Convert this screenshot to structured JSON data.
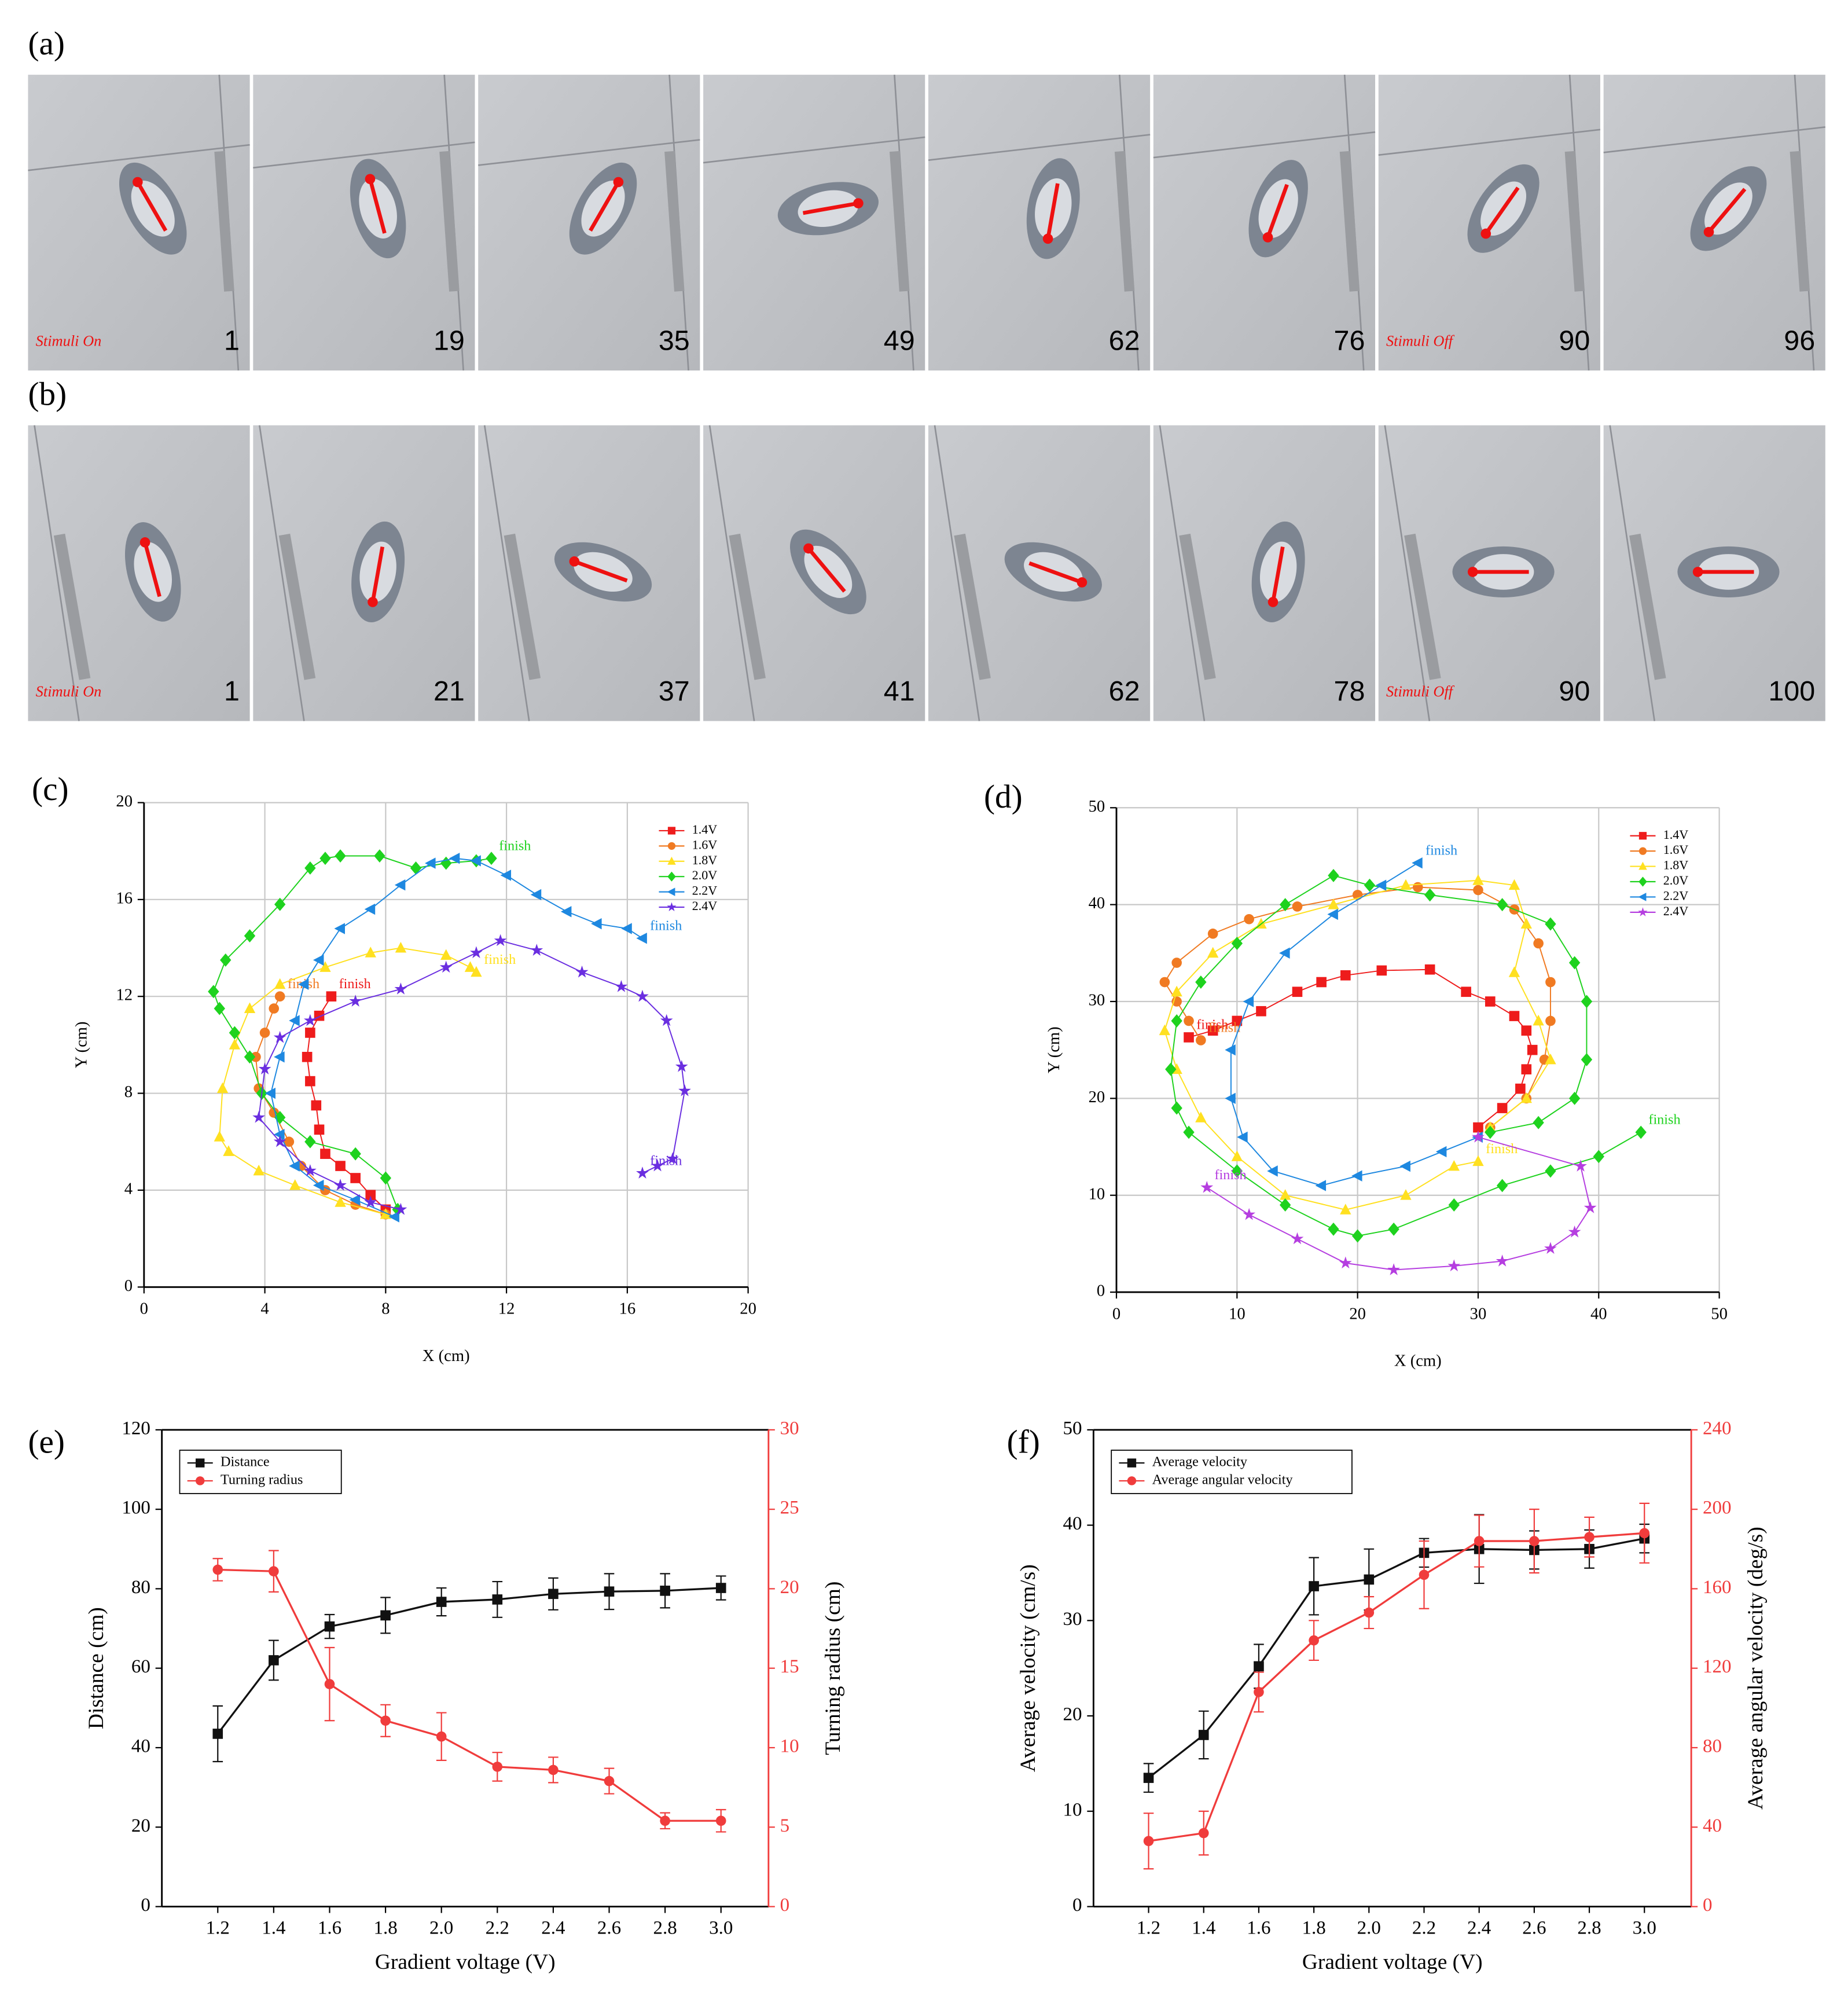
{
  "photo_strips": [
    {
      "panel_label": "(a)",
      "frames": [
        {
          "number": 1,
          "note": "Stimuli On"
        },
        {
          "number": 19
        },
        {
          "number": 35
        },
        {
          "number": 49
        },
        {
          "number": 62
        },
        {
          "number": 76
        },
        {
          "number": 90,
          "note": "Stimuli Off"
        },
        {
          "number": 96
        }
      ]
    },
    {
      "panel_label": "(b)",
      "frames": [
        {
          "number": 1,
          "note": "Stimuli On"
        },
        {
          "number": 21
        },
        {
          "number": 37
        },
        {
          "number": 41
        },
        {
          "number": 62
        },
        {
          "number": 78
        },
        {
          "number": 90,
          "note": "Stimuli Off"
        },
        {
          "number": 100
        }
      ]
    }
  ],
  "chart_data": [
    {
      "type": "scatter",
      "panel_label": "(c)",
      "xlabel": "X (cm)",
      "ylabel": "Y (cm)",
      "xlim": [
        0,
        20
      ],
      "xticks": [
        0,
        4,
        8,
        12,
        16,
        20
      ],
      "ylim": [
        0,
        20
      ],
      "yticks": [
        0,
        4,
        8,
        12,
        16,
        20
      ],
      "grid": true,
      "legend": "upper right",
      "series": [
        {
          "name": "1.4V",
          "color": "#ee1c1c",
          "marker": "square",
          "end_label": "finish",
          "x": [
            8,
            7.5,
            7,
            6.5,
            6,
            5.8,
            5.7,
            5.5,
            5.4,
            5.5,
            5.8,
            6.2
          ],
          "y": [
            3.2,
            3.8,
            4.5,
            5,
            5.5,
            6.5,
            7.5,
            8.5,
            9.5,
            10.5,
            11.2,
            12
          ]
        },
        {
          "name": "1.6V",
          "color": "#f07a22",
          "marker": "circle",
          "end_label": "finish",
          "x": [
            8,
            7,
            6,
            5.2,
            4.8,
            4.3,
            3.8,
            3.7,
            4,
            4.3,
            4.5
          ],
          "y": [
            3,
            3.4,
            4,
            5,
            6,
            7.2,
            8.2,
            9.5,
            10.5,
            11.5,
            12
          ]
        },
        {
          "name": "1.8V",
          "color": "#ffe020",
          "marker": "triangle",
          "end_label": "finish",
          "x": [
            8,
            6.5,
            5,
            3.8,
            2.8,
            2.5,
            2.6,
            3,
            3.5,
            4.5,
            6,
            7.5,
            8.5,
            10,
            10.8,
            11
          ],
          "y": [
            3,
            3.5,
            4.2,
            4.8,
            5.6,
            6.2,
            8.2,
            10,
            11.5,
            12.5,
            13.2,
            13.8,
            14,
            13.7,
            13.2,
            13
          ]
        },
        {
          "name": "2.0V",
          "color": "#1ed21e",
          "marker": "diamond",
          "end_label": "finish",
          "x": [
            8.4,
            8,
            7,
            5.5,
            4.5,
            3.9,
            3.5,
            3,
            2.5,
            2.3,
            2.7,
            3.5,
            4.5,
            5.5,
            6,
            6.5,
            7.8,
            9,
            10,
            11,
            11.5
          ],
          "y": [
            3.2,
            4.5,
            5.5,
            6,
            7,
            8,
            9.5,
            10.5,
            11.5,
            12.2,
            13.5,
            14.5,
            15.8,
            17.3,
            17.7,
            17.8,
            17.8,
            17.3,
            17.5,
            17.6,
            17.7
          ]
        },
        {
          "name": "2.2V",
          "color": "#1e88e0",
          "marker": "triangle-left",
          "end_label": "finish",
          "x": [
            8.3,
            7,
            5.8,
            5,
            4.5,
            4.2,
            4.5,
            5,
            5.3,
            5.8,
            6.5,
            7.5,
            8.5,
            9.5,
            10.3,
            11,
            12,
            13,
            14,
            15,
            16,
            16.5
          ],
          "y": [
            2.9,
            3.6,
            4.2,
            5,
            6.3,
            8,
            9.5,
            11,
            12.5,
            13.5,
            14.8,
            15.6,
            16.6,
            17.5,
            17.7,
            17.6,
            17,
            16.2,
            15.5,
            15,
            14.8,
            14.4
          ]
        },
        {
          "name": "2.4V",
          "color": "#6a2ee0",
          "marker": "star",
          "end_label": "finish",
          "x": [
            8.5,
            7.5,
            6.5,
            5.5,
            4.5,
            3.8,
            4,
            4.5,
            5.5,
            7,
            8.5,
            10,
            11,
            11.8,
            13,
            14.5,
            15.8,
            16.5,
            17.3,
            17.8,
            17.9,
            17.5,
            17,
            16.5
          ],
          "y": [
            3.2,
            3.5,
            4.2,
            4.8,
            6,
            7,
            9,
            10.3,
            11,
            11.8,
            12.3,
            13.2,
            13.8,
            14.3,
            13.9,
            13,
            12.4,
            12,
            11,
            9.1,
            8.1,
            5.3,
            5,
            4.7
          ]
        }
      ]
    },
    {
      "type": "scatter",
      "panel_label": "(d)",
      "xlabel": "X (cm)",
      "ylabel": "Y (cm)",
      "xlim": [
        0,
        50
      ],
      "xticks": [
        0,
        10,
        20,
        30,
        40,
        50
      ],
      "ylim": [
        0,
        50
      ],
      "yticks": [
        0,
        10,
        20,
        30,
        40,
        50
      ],
      "grid": true,
      "legend": "upper right",
      "series": [
        {
          "name": "1.4V",
          "color": "#ee1c1c",
          "marker": "square",
          "end_label": "finish",
          "x": [
            30,
            32,
            33.5,
            34,
            34.5,
            34,
            33,
            31,
            29,
            26,
            22,
            19,
            17,
            15,
            12,
            10,
            8,
            6
          ],
          "y": [
            17,
            19,
            21,
            23,
            25,
            27,
            28.5,
            30,
            31,
            33.3,
            33.2,
            32.7,
            32,
            31,
            29,
            28,
            27,
            26.3
          ]
        },
        {
          "name": "1.6V",
          "color": "#f07a22",
          "marker": "circle",
          "end_label": "finish",
          "x": [
            31,
            34,
            35.5,
            36,
            36,
            35,
            33,
            30,
            25,
            20,
            15,
            11,
            8,
            5,
            4,
            5,
            6,
            7
          ],
          "y": [
            17,
            20,
            24,
            28,
            32,
            36,
            39.5,
            41.5,
            41.8,
            41,
            39.8,
            38.5,
            37,
            34,
            32,
            30,
            28,
            26
          ]
        },
        {
          "name": "1.8V",
          "color": "#ffe020",
          "marker": "triangle",
          "end_label": "finish",
          "x": [
            31,
            34,
            36,
            35,
            33,
            34,
            33,
            30,
            24,
            18,
            12,
            8,
            5,
            4,
            5,
            7,
            10,
            14,
            19,
            24,
            28,
            30
          ],
          "y": [
            17,
            20,
            24,
            28,
            33,
            38,
            42,
            42.5,
            42,
            40,
            38,
            35,
            31,
            27,
            23,
            18,
            14,
            10,
            8.5,
            10,
            13,
            13.5
          ]
        },
        {
          "name": "2.0V",
          "color": "#1ed21e",
          "marker": "diamond",
          "end_label": "finish",
          "x": [
            31,
            35,
            38,
            39,
            39,
            38,
            36,
            32,
            26,
            21,
            18,
            14,
            10,
            7,
            5,
            4.5,
            5,
            6,
            10,
            14,
            18,
            20,
            23,
            28,
            32,
            36,
            40,
            43.5
          ],
          "y": [
            16.5,
            17.5,
            20,
            24,
            30,
            34,
            38,
            40,
            41,
            42,
            43,
            40,
            36,
            32,
            28,
            23,
            19,
            16.5,
            12.5,
            9,
            6.5,
            5.8,
            6.5,
            9,
            11,
            12.5,
            14,
            16.5
          ]
        },
        {
          "name": "2.2V",
          "color": "#1e88e0",
          "marker": "triangle-left",
          "end_label": "finish",
          "x": [
            30,
            27,
            24,
            20,
            17,
            13,
            10.5,
            9.5,
            9.5,
            11,
            14,
            18,
            22,
            25
          ],
          "y": [
            16,
            14.5,
            13,
            12,
            11,
            12.5,
            16,
            20,
            25,
            30,
            35,
            39,
            42,
            44.3
          ]
        },
        {
          "name": "2.4V",
          "color": "#b53ee0",
          "marker": "star",
          "end_label": "finish",
          "x": [
            30,
            38.5,
            39.3,
            38,
            36,
            32,
            28,
            23,
            19,
            15,
            11,
            7.5
          ],
          "y": [
            16,
            13,
            8.7,
            6.2,
            4.5,
            3.2,
            2.7,
            2.3,
            3,
            5.5,
            8,
            10.8
          ]
        }
      ]
    },
    {
      "type": "line",
      "panel_label": "(e)",
      "xlabel": "Gradient voltage (V)",
      "ylabel": "Distance (cm)",
      "y2label": "Turning radius (cm)",
      "x": [
        1.2,
        1.4,
        1.6,
        1.8,
        2.0,
        2.2,
        2.4,
        2.6,
        2.8,
        3.0
      ],
      "xlim": [
        1.0,
        3.17
      ],
      "xticks": [
        1.2,
        1.4,
        1.6,
        1.8,
        {
          "value": 2,
          "label": "2.0"
        },
        2.2,
        2.4,
        2.6,
        2.8,
        {
          "value": 3,
          "label": "3.0"
        }
      ],
      "ylim": [
        0,
        120
      ],
      "yticks": [
        0,
        20,
        40,
        60,
        80,
        100,
        120
      ],
      "y2lim": [
        0,
        30
      ],
      "y2ticks": [
        0,
        5,
        10,
        15,
        20,
        25,
        30
      ],
      "legend": "upper left",
      "series": [
        {
          "name": "Distance",
          "color": "#111111",
          "marker": "square",
          "values": [
            43.5,
            62,
            70.5,
            73.3,
            76.7,
            77.3,
            78.7,
            79.3,
            79.5,
            80.2
          ],
          "errors": [
            7,
            5,
            3,
            4.5,
            3.5,
            4.5,
            4,
            4.5,
            4.3,
            3
          ]
        },
        {
          "name": "Turning radius",
          "color": "#f03c3c",
          "marker": "circle",
          "axis": "y2",
          "values": [
            21.2,
            21.1,
            14,
            11.7,
            10.7,
            8.8,
            8.6,
            7.9,
            5.4,
            5.4
          ],
          "errors": [
            0.7,
            1.3,
            2.3,
            1,
            1.5,
            0.9,
            0.8,
            0.8,
            0.5,
            0.7
          ]
        }
      ]
    },
    {
      "type": "line",
      "panel_label": "(f)",
      "xlabel": "Gradient voltage (V)",
      "ylabel": "Average velocity (cm/s)",
      "y2label": "Average angular velocity (deg/s)",
      "x": [
        1.2,
        1.4,
        1.6,
        1.8,
        2.0,
        2.2,
        2.4,
        2.6,
        2.8,
        3.0
      ],
      "xlim": [
        1.0,
        3.17
      ],
      "xticks": [
        1.2,
        1.4,
        1.6,
        1.8,
        {
          "value": 2,
          "label": "2.0"
        },
        2.2,
        2.4,
        2.6,
        2.8,
        {
          "value": 3,
          "label": "3.0"
        }
      ],
      "ylim": [
        0,
        50
      ],
      "yticks": [
        0,
        10,
        20,
        30,
        40,
        50
      ],
      "y2lim": [
        0,
        240
      ],
      "y2ticks": [
        0,
        40,
        80,
        120,
        160,
        200,
        240
      ],
      "legend": "upper left",
      "series": [
        {
          "name": "Average velocity",
          "color": "#111111",
          "marker": "square",
          "values": [
            13.5,
            18,
            25.2,
            33.6,
            34.3,
            37.1,
            37.5,
            37.4,
            37.5,
            38.6
          ],
          "errors": [
            1.5,
            2.5,
            2.3,
            3,
            3.2,
            1.5,
            3.6,
            2,
            2,
            1.5
          ]
        },
        {
          "name": "Average angular velocity",
          "color": "#f03c3c",
          "marker": "circle",
          "axis": "y2",
          "values": [
            33,
            37,
            108,
            134,
            148,
            167,
            184,
            184,
            186,
            188
          ],
          "errors": [
            14,
            11,
            10,
            10,
            8,
            17,
            13,
            16,
            10,
            15
          ]
        }
      ]
    }
  ]
}
